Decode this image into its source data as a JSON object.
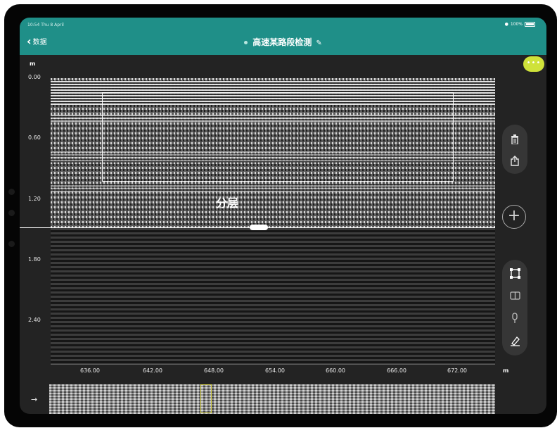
{
  "status": {
    "time_date": "10:54 Thu 8 April",
    "battery": "100%"
  },
  "header": {
    "back_label": "数据",
    "title": "高速某路段检测"
  },
  "icons": {
    "back": "chevron-left-icon",
    "edit": "pencil-icon",
    "more": "ellipsis-icon",
    "delete": "trash-icon",
    "share": "share-icon",
    "add": "plus-icon",
    "select": "selection-frame-icon",
    "compare": "split-view-icon",
    "marker": "pin-icon",
    "annotate": "pen-icon",
    "play": "arrow-right-icon"
  },
  "colors": {
    "header": "#1f8f88",
    "more_button": "#cfe23a",
    "background": "#232323",
    "overview_window": "#d7d14a"
  },
  "plot": {
    "y_unit": "m",
    "y_ticks": [
      "0.00",
      "0.60",
      "1.20",
      "1.80",
      "2.40"
    ],
    "x_unit": "m",
    "x_ticks": [
      "636.00",
      "642.00",
      "648.00",
      "654.00",
      "660.00",
      "666.00",
      "672.00"
    ],
    "selection_label": "分层"
  }
}
